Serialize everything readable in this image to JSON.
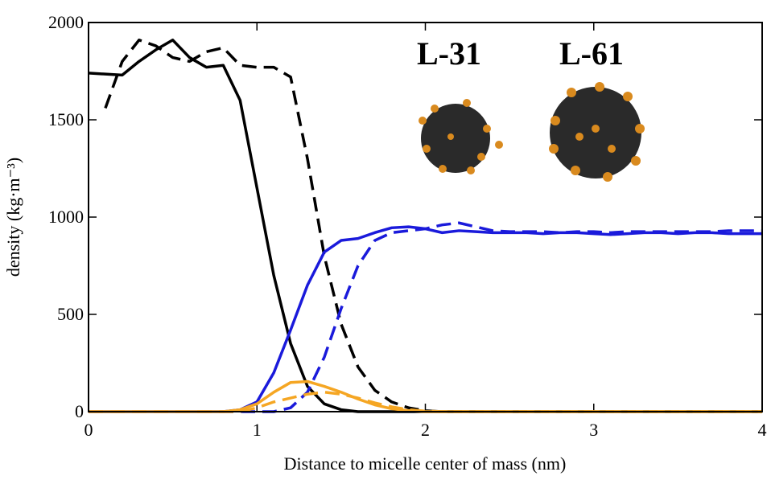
{
  "chart_data": {
    "type": "line",
    "xlabel": "Distance to micelle center of mass (nm)",
    "ylabel": "density (kg·m⁻³)",
    "annotations": [
      "L-31",
      "L-61"
    ],
    "x": [
      0,
      0.1,
      0.2,
      0.3,
      0.4,
      0.5,
      0.6,
      0.7,
      0.8,
      0.9,
      1,
      1.1,
      1.2,
      1.3,
      1.4,
      1.5,
      1.6,
      1.7,
      1.8,
      1.9,
      2,
      2.1,
      2.2,
      2.3,
      2.4,
      2.5,
      2.6,
      2.7,
      2.8,
      2.9,
      3,
      3.1,
      3.2,
      3.3,
      3.4,
      3.5,
      3.6,
      3.7,
      3.8,
      3.9,
      4
    ],
    "series": [
      {
        "color": "#000000",
        "linestyle": "solid",
        "values": [
          1740,
          1735,
          1730,
          1800,
          1860,
          1910,
          1820,
          1770,
          1780,
          1600,
          1150,
          700,
          350,
          130,
          40,
          10,
          0,
          0,
          0,
          0,
          0,
          0,
          0,
          0,
          0,
          0,
          0,
          0,
          0,
          0,
          0,
          0,
          0,
          0,
          0,
          0,
          0,
          0,
          0,
          0,
          0
        ]
      },
      {
        "color": "#000000",
        "linestyle": "dashed",
        "values": [
          null,
          1560,
          1800,
          1910,
          1880,
          1820,
          1800,
          1850,
          1870,
          1780,
          1770,
          1770,
          1720,
          1300,
          800,
          450,
          230,
          110,
          50,
          20,
          5,
          0,
          0,
          0,
          0,
          0,
          0,
          0,
          0,
          0,
          0,
          0,
          0,
          0,
          0,
          0,
          0,
          0,
          0,
          0,
          0
        ]
      },
      {
        "color": "#1a1adb",
        "linestyle": "solid",
        "values": [
          0,
          0,
          0,
          0,
          0,
          0,
          0,
          0,
          0,
          10,
          50,
          200,
          420,
          650,
          820,
          880,
          890,
          920,
          945,
          950,
          940,
          920,
          930,
          925,
          920,
          920,
          920,
          915,
          920,
          920,
          915,
          910,
          915,
          920,
          920,
          915,
          920,
          920,
          915,
          915,
          915
        ]
      },
      {
        "color": "#1a1adb",
        "linestyle": "dashed",
        "values": [
          0,
          0,
          0,
          0,
          0,
          0,
          0,
          0,
          0,
          0,
          0,
          0,
          20,
          100,
          280,
          530,
          750,
          880,
          920,
          930,
          940,
          960,
          970,
          950,
          930,
          925,
          925,
          925,
          920,
          925,
          925,
          920,
          925,
          925,
          925,
          925,
          925,
          925,
          930,
          930,
          930
        ]
      },
      {
        "color": "#f5a623",
        "linestyle": "solid",
        "values": [
          0,
          0,
          0,
          0,
          0,
          0,
          0,
          0,
          0,
          10,
          40,
          100,
          150,
          155,
          130,
          100,
          65,
          35,
          15,
          5,
          0,
          0,
          0,
          0,
          0,
          0,
          0,
          0,
          0,
          0,
          0,
          0,
          0,
          0,
          0,
          0,
          0,
          0,
          0,
          0,
          0
        ]
      },
      {
        "color": "#f5a623",
        "linestyle": "dashed",
        "values": [
          0,
          0,
          0,
          0,
          0,
          0,
          0,
          0,
          0,
          0,
          20,
          50,
          70,
          90,
          100,
          90,
          70,
          45,
          25,
          10,
          3,
          0,
          0,
          0,
          0,
          0,
          0,
          0,
          0,
          0,
          0,
          0,
          0,
          0,
          0,
          0,
          0,
          0,
          0,
          0,
          0
        ]
      }
    ],
    "xlim": [
      0,
      4
    ],
    "xticks": [
      0,
      1,
      2,
      3,
      4
    ],
    "ylim": [
      0,
      2000
    ],
    "yticks": [
      0,
      500,
      1000,
      1500,
      2000
    ]
  }
}
